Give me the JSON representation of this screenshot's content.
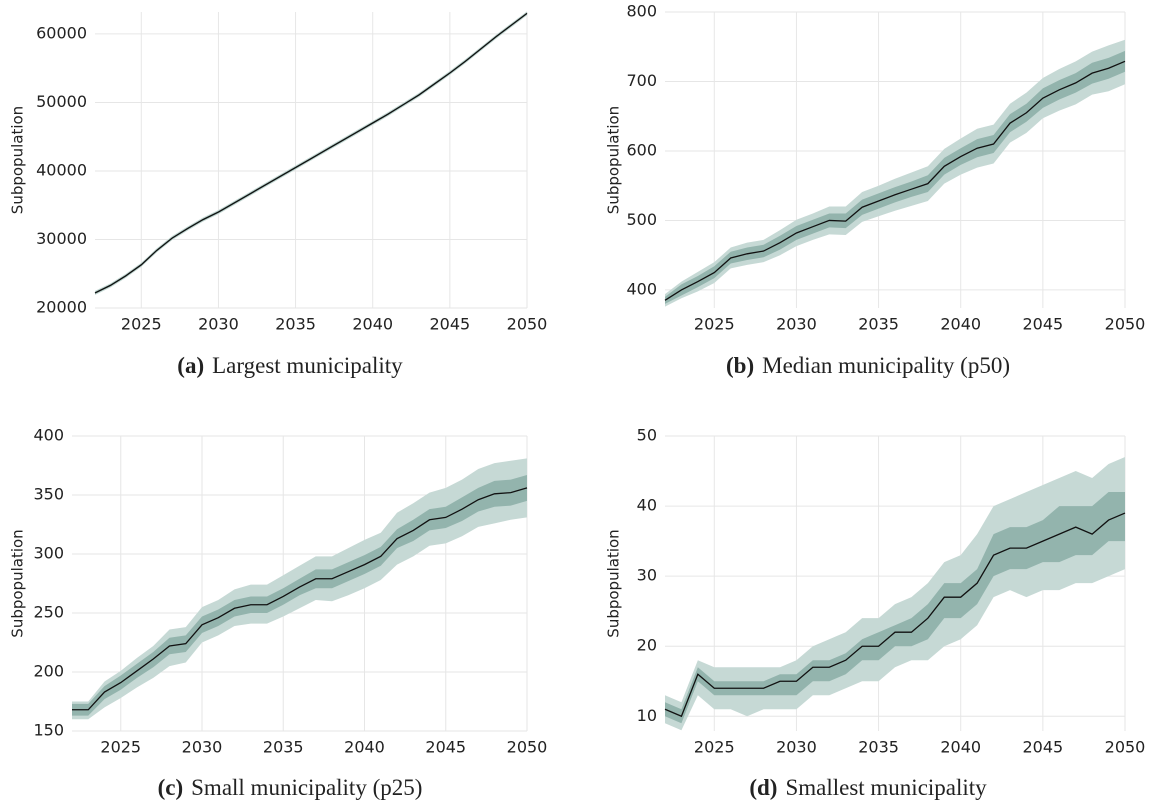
{
  "chart_data": [
    {
      "type": "line",
      "caption_label": "(a)",
      "caption": "Largest municipality",
      "ylabel": "Subpopulation",
      "x": [
        2022,
        2023,
        2024,
        2025,
        2026,
        2027,
        2028,
        2029,
        2030,
        2031,
        2032,
        2033,
        2034,
        2035,
        2036,
        2037,
        2038,
        2039,
        2040,
        2041,
        2042,
        2043,
        2044,
        2045,
        2046,
        2047,
        2048,
        2049,
        2050
      ],
      "xlim": [
        2022,
        2050
      ],
      "xticks": [
        2025,
        2030,
        2035,
        2040,
        2045,
        2050
      ],
      "ylim": [
        20000,
        63200
      ],
      "yticks": [
        20000,
        30000,
        40000,
        50000,
        60000
      ],
      "grid": true,
      "color": "#111111",
      "values": [
        22200,
        23300,
        24700,
        26300,
        28400,
        30200,
        31600,
        32900,
        34000,
        35300,
        36600,
        37900,
        39200,
        40500,
        41800,
        43100,
        44400,
        45700,
        47000,
        48300,
        49700,
        51100,
        52700,
        54300,
        56000,
        57800,
        59600,
        61300,
        63000
      ],
      "bands": [
        {
          "color": "#c6d9d5",
          "lower": [
            21900,
            23000,
            24400,
            26000,
            28100,
            29900,
            31300,
            32600,
            33700,
            35000,
            36300,
            37600,
            38900,
            40200,
            41500,
            42800,
            44100,
            45400,
            46700,
            48000,
            49400,
            50800,
            52400,
            54000,
            55700,
            57500,
            59300,
            61000,
            62700
          ],
          "upper": [
            22500,
            23600,
            25000,
            26600,
            28700,
            30500,
            31900,
            33200,
            34300,
            35600,
            36900,
            38200,
            39500,
            40800,
            42100,
            43400,
            44700,
            46000,
            47300,
            48600,
            50000,
            51400,
            53000,
            54600,
            56300,
            58100,
            59900,
            61600,
            63300
          ]
        },
        {
          "color": "#93b4ad",
          "lower": [
            22050,
            23150,
            24550,
            26150,
            28250,
            30050,
            31450,
            32750,
            33850,
            35150,
            36450,
            37750,
            39050,
            40350,
            41650,
            42950,
            44250,
            45550,
            46850,
            48150,
            49550,
            50950,
            52550,
            54150,
            55850,
            57650,
            59450,
            61150,
            62850
          ],
          "upper": [
            22350,
            23450,
            24850,
            26450,
            28550,
            30350,
            31750,
            33050,
            34150,
            35450,
            36750,
            38050,
            39350,
            40650,
            41950,
            43250,
            44550,
            45850,
            47150,
            48450,
            49850,
            51250,
            52850,
            54450,
            56150,
            57950,
            59750,
            61450,
            63150
          ]
        }
      ]
    },
    {
      "type": "line",
      "caption_label": "(b)",
      "caption": "Median municipality (p50)",
      "ylabel": "Subpopulation",
      "x": [
        2022,
        2023,
        2024,
        2025,
        2026,
        2027,
        2028,
        2029,
        2030,
        2031,
        2032,
        2033,
        2034,
        2035,
        2036,
        2037,
        2038,
        2039,
        2040,
        2041,
        2042,
        2043,
        2044,
        2045,
        2046,
        2047,
        2048,
        2049,
        2050
      ],
      "xlim": [
        2022,
        2050
      ],
      "xticks": [
        2025,
        2030,
        2035,
        2040,
        2045,
        2050
      ],
      "ylim": [
        374,
        800
      ],
      "yticks": [
        400,
        500,
        600,
        700,
        800
      ],
      "grid": true,
      "color": "#111111",
      "values": [
        385,
        400,
        412,
        425,
        446,
        452,
        456,
        468,
        482,
        491,
        500,
        499,
        519,
        528,
        537,
        545,
        553,
        578,
        592,
        604,
        610,
        640,
        655,
        676,
        688,
        698,
        712,
        719,
        729
      ],
      "bands": [
        {
          "color": "#c6d9d5",
          "lower": [
            376,
            388,
            398,
            410,
            431,
            436,
            440,
            450,
            463,
            472,
            480,
            479,
            498,
            506,
            514,
            521,
            528,
            553,
            566,
            576,
            582,
            612,
            626,
            647,
            658,
            667,
            681,
            686,
            696
          ],
          "upper": [
            394,
            412,
            426,
            440,
            461,
            468,
            472,
            486,
            501,
            510,
            520,
            520,
            541,
            550,
            560,
            569,
            578,
            603,
            618,
            632,
            638,
            668,
            684,
            705,
            718,
            729,
            743,
            752,
            760
          ]
        },
        {
          "color": "#93b4ad",
          "lower": [
            380,
            392,
            404,
            417,
            438,
            443,
            447,
            458,
            472,
            481,
            490,
            489,
            508,
            517,
            526,
            534,
            541,
            566,
            580,
            591,
            597,
            627,
            642,
            662,
            674,
            684,
            697,
            704,
            714
          ],
          "upper": [
            390,
            408,
            420,
            434,
            455,
            461,
            465,
            478,
            492,
            501,
            510,
            510,
            530,
            539,
            548,
            556,
            565,
            590,
            604,
            617,
            623,
            653,
            668,
            690,
            702,
            712,
            727,
            734,
            744
          ]
        }
      ]
    },
    {
      "type": "line",
      "caption_label": "(c)",
      "caption": "Small municipality (p25)",
      "ylabel": "Subpopulation",
      "x": [
        2022,
        2023,
        2024,
        2025,
        2026,
        2027,
        2028,
        2029,
        2030,
        2031,
        2032,
        2033,
        2034,
        2035,
        2036,
        2037,
        2038,
        2039,
        2040,
        2041,
        2042,
        2043,
        2044,
        2045,
        2046,
        2047,
        2048,
        2049,
        2050
      ],
      "xlim": [
        2022,
        2050
      ],
      "xticks": [
        2025,
        2030,
        2035,
        2040,
        2045,
        2050
      ],
      "ylim": [
        150,
        400
      ],
      "yticks": [
        150,
        200,
        250,
        300,
        350,
        400
      ],
      "grid": true,
      "color": "#111111",
      "values": [
        168,
        168,
        183,
        191,
        201,
        211,
        222,
        224,
        240,
        246,
        254,
        257,
        257,
        264,
        272,
        279,
        279,
        285,
        291,
        298,
        313,
        320,
        329,
        331,
        338,
        346,
        351,
        352,
        356
      ],
      "bands": [
        {
          "color": "#c6d9d5",
          "lower": [
            160,
            160,
            170,
            178,
            187,
            195,
            205,
            208,
            225,
            231,
            239,
            241,
            241,
            247,
            254,
            261,
            260,
            265,
            271,
            278,
            291,
            298,
            307,
            309,
            315,
            323,
            326,
            329,
            331
          ],
          "upper": [
            175,
            175,
            192,
            201,
            212,
            222,
            236,
            238,
            255,
            261,
            270,
            274,
            274,
            282,
            290,
            298,
            298,
            305,
            312,
            318,
            335,
            343,
            352,
            356,
            363,
            372,
            377,
            379,
            381
          ]
        },
        {
          "color": "#93b4ad",
          "lower": [
            163,
            163,
            177,
            185,
            195,
            204,
            215,
            217,
            233,
            239,
            247,
            250,
            250,
            257,
            265,
            271,
            271,
            277,
            283,
            290,
            305,
            311,
            320,
            322,
            328,
            336,
            340,
            341,
            345
          ],
          "upper": [
            173,
            173,
            188,
            197,
            207,
            217,
            229,
            231,
            247,
            253,
            261,
            264,
            264,
            271,
            279,
            287,
            287,
            293,
            299,
            306,
            321,
            329,
            338,
            340,
            348,
            356,
            362,
            363,
            367
          ]
        }
      ]
    },
    {
      "type": "line",
      "caption_label": "(d)",
      "caption": "Smallest municipality",
      "ylabel": "Subpopulation",
      "x": [
        2022,
        2023,
        2024,
        2025,
        2026,
        2027,
        2028,
        2029,
        2030,
        2031,
        2032,
        2033,
        2034,
        2035,
        2036,
        2037,
        2038,
        2039,
        2040,
        2041,
        2042,
        2043,
        2044,
        2045,
        2046,
        2047,
        2048,
        2049,
        2050
      ],
      "xlim": [
        2022,
        2050
      ],
      "xticks": [
        2025,
        2030,
        2035,
        2040,
        2045,
        2050
      ],
      "ylim": [
        7.9,
        50
      ],
      "yticks": [
        10,
        20,
        30,
        40,
        50
      ],
      "grid": true,
      "color": "#111111",
      "values": [
        11,
        10,
        16,
        14,
        14,
        14,
        14,
        15,
        15,
        17,
        17,
        18,
        20,
        20,
        22,
        22,
        24,
        27,
        27,
        29,
        33,
        34,
        34,
        35,
        36,
        37,
        36,
        38,
        39
      ],
      "bands": [
        {
          "color": "#c6d9d5",
          "lower": [
            9,
            8,
            13,
            11,
            11,
            10,
            11,
            11,
            11,
            13,
            13,
            14,
            15,
            15,
            17,
            18,
            18,
            20,
            21,
            23,
            27,
            28,
            27,
            28,
            28,
            29,
            29,
            30,
            31
          ],
          "upper": [
            13,
            12,
            18,
            17,
            17,
            17,
            17,
            17,
            18,
            20,
            21,
            22,
            24,
            24,
            26,
            27,
            29,
            32,
            33,
            36,
            40,
            41,
            42,
            43,
            44,
            45,
            44,
            46,
            47
          ]
        },
        {
          "color": "#93b4ad",
          "lower": [
            10,
            9,
            15,
            13,
            13,
            13,
            13,
            13,
            13,
            15,
            15,
            16,
            18,
            18,
            20,
            20,
            21,
            24,
            24,
            26,
            30,
            31,
            31,
            32,
            32,
            33,
            33,
            35,
            35
          ],
          "upper": [
            12,
            11,
            17,
            15,
            15,
            15,
            15,
            16,
            16,
            18,
            18,
            19,
            21,
            22,
            23,
            24,
            26,
            29,
            29,
            31,
            36,
            37,
            37,
            38,
            40,
            40,
            40,
            42,
            42
          ]
        }
      ]
    }
  ]
}
